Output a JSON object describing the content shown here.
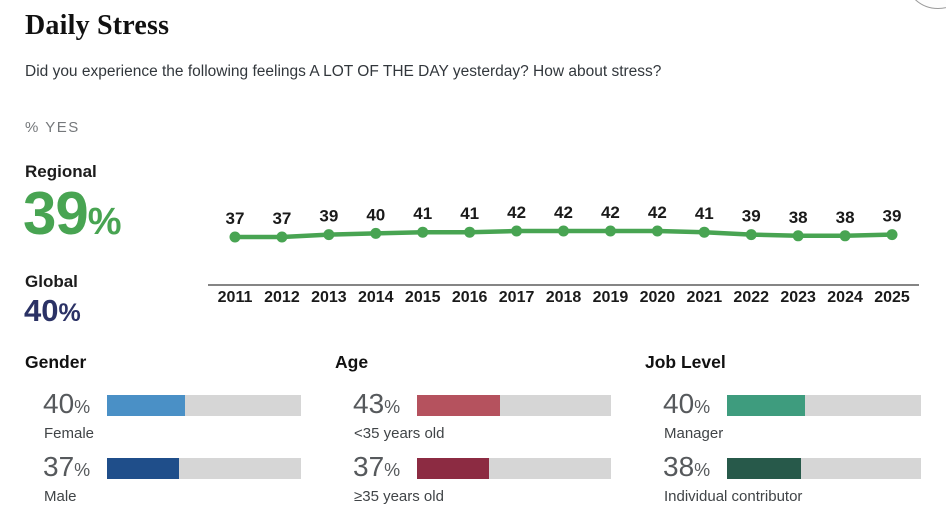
{
  "header": {
    "title": "Daily Stress",
    "subtitle": "Did you experience the following feelings A LOT OF THE DAY yesterday? How about stress?",
    "unit_label": "% YES"
  },
  "percent_suffix": "%",
  "stats": {
    "regional_label": "Regional",
    "regional_value": "39",
    "regional_color": "#48a452",
    "global_label": "Global",
    "global_value": "40",
    "global_color": "#2b3265"
  },
  "chart_data": {
    "type": "line",
    "title": "Daily Stress trend, % yes",
    "x": [
      2011,
      2012,
      2013,
      2014,
      2015,
      2016,
      2017,
      2018,
      2019,
      2020,
      2021,
      2022,
      2023,
      2024,
      2025
    ],
    "values": [
      37,
      37,
      39,
      40,
      41,
      41,
      42,
      42,
      42,
      42,
      41,
      39,
      38,
      38,
      39
    ],
    "data_labels": true,
    "line_color": "#48a452",
    "axis_color": "#3c3c3c",
    "label_color": "#1a1a1a",
    "xlabel": "",
    "ylabel": "% YES",
    "ylim": [
      35,
      44
    ],
    "grid": false,
    "legend": false
  },
  "demographics": [
    {
      "title": "Gender",
      "rows": [
        {
          "value": 40,
          "value_label": "40",
          "label": "Female",
          "color": "#4a90c6"
        },
        {
          "value": 37,
          "value_label": "37",
          "label": "Male",
          "color": "#1f4e8a"
        }
      ]
    },
    {
      "title": "Age",
      "rows": [
        {
          "value": 43,
          "value_label": "43",
          "label": "<35 years old",
          "color": "#b5525e"
        },
        {
          "value": 37,
          "value_label": "37",
          "label": "≥35 years old",
          "color": "#8c2b42"
        }
      ]
    },
    {
      "title": "Job Level",
      "rows": [
        {
          "value": 40,
          "value_label": "40",
          "label": "Manager",
          "color": "#3e9c7e"
        },
        {
          "value": 38,
          "value_label": "38",
          "label": "Individual contributor",
          "color": "#27594a"
        }
      ]
    }
  ],
  "colors": {
    "track_gray": "#d6d6d6",
    "text_dark": "#1c1c1c",
    "text_muted": "#75787b",
    "demo_pct_gray": "#56595c"
  }
}
